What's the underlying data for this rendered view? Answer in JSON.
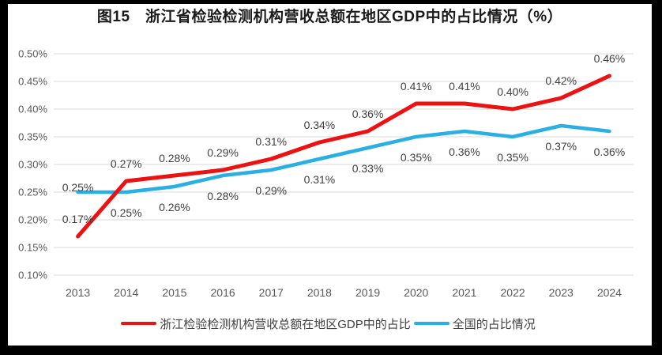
{
  "title": "图15　浙江省检验检测机构营收总额在地区GDP中的占比情况（%）",
  "colors": {
    "frame_border": "#000000",
    "background": "#ffffff",
    "gridline": "#d9d9d9",
    "axis_text": "#595959",
    "data_label_text": "#404040",
    "title_text": "#1a1a1a",
    "series_zhejiang": "#ee1111",
    "series_national": "#2aafe5"
  },
  "chart_data": {
    "type": "line",
    "title": "图15　浙江省检验检测机构营收总额在地区GDP中的占比情况（%）",
    "categories": [
      "2013",
      "2014",
      "2015",
      "2016",
      "2017",
      "2018",
      "2019",
      "2020",
      "2021",
      "2022",
      "2023",
      "2024"
    ],
    "xlabel": "",
    "ylabel": "",
    "unit": "%",
    "ylim": [
      0.1,
      0.5
    ],
    "grid": true,
    "legend_position": "bottom",
    "yticks": [
      {
        "v": 0.5,
        "label": "0.50%"
      },
      {
        "v": 0.45,
        "label": "0.45%"
      },
      {
        "v": 0.4,
        "label": "0.40%"
      },
      {
        "v": 0.35,
        "label": "0.35%"
      },
      {
        "v": 0.3,
        "label": "0.30%"
      },
      {
        "v": 0.25,
        "label": "0.25%"
      },
      {
        "v": 0.2,
        "label": "0.20%"
      },
      {
        "v": 0.15,
        "label": "0.15%"
      },
      {
        "v": 0.1,
        "label": "0.10%"
      }
    ],
    "series": [
      {
        "name": "浙江检验检测机构营收总额在地区GDP中的占比",
        "color": "#ee1111",
        "width": 5,
        "values": [
          0.17,
          0.27,
          0.28,
          0.29,
          0.31,
          0.34,
          0.36,
          0.41,
          0.41,
          0.4,
          0.42,
          0.46
        ],
        "labels": [
          "0.17%",
          "0.27%",
          "0.28%",
          "0.29%",
          "0.31%",
          "0.34%",
          "0.36%",
          "0.41%",
          "0.41%",
          "0.40%",
          "0.42%",
          "0.46%"
        ],
        "label_dy": -17,
        "label_dy_overrides": {}
      },
      {
        "name": "全国的占比情况",
        "color": "#2aafe5",
        "width": 4.5,
        "values": [
          0.25,
          0.25,
          0.26,
          0.28,
          0.29,
          0.31,
          0.33,
          0.35,
          0.36,
          0.35,
          0.37,
          0.36
        ],
        "labels": [
          "0.25%",
          "0.25%",
          "0.26%",
          "0.28%",
          "0.29%",
          "0.31%",
          "0.33%",
          "0.35%",
          "0.36%",
          "0.35%",
          "0.37%",
          "0.36%"
        ],
        "label_dy": 31,
        "label_dy_overrides": {
          "0": -1
        }
      }
    ]
  }
}
